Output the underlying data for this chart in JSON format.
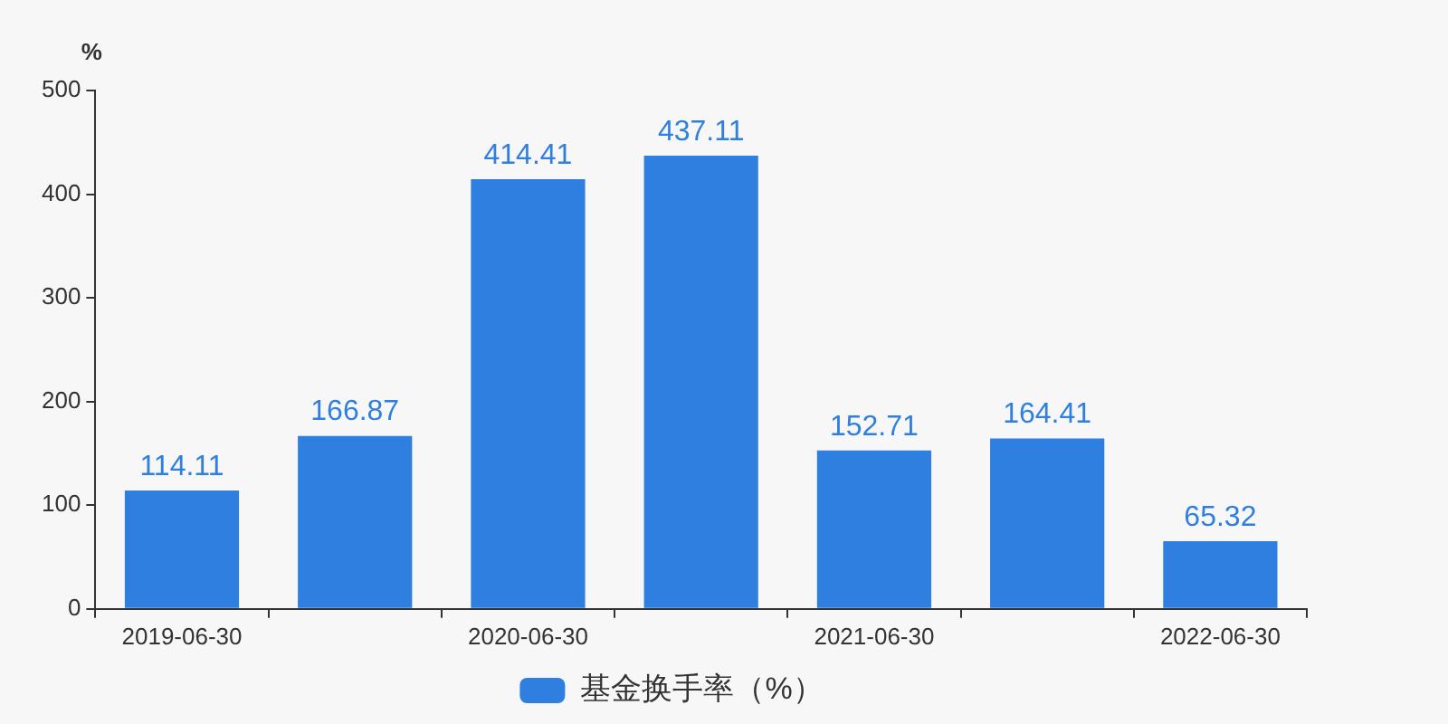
{
  "chart_data": {
    "type": "bar",
    "ylabel": "%",
    "categories": [
      "2019-06-30",
      null,
      "2020-06-30",
      null,
      "2021-06-30",
      null,
      "2022-06-30"
    ],
    "series": [
      {
        "name": "基金换手率（%）",
        "color": "#2e7fe0",
        "values": [
          114.11,
          166.87,
          414.41,
          437.11,
          152.71,
          164.41,
          65.32
        ]
      }
    ],
    "ylim": [
      0,
      500
    ],
    "yticks": [
      0,
      100,
      200,
      300,
      400,
      500
    ],
    "data_labels": true,
    "legend": "bottom",
    "grid": false
  }
}
